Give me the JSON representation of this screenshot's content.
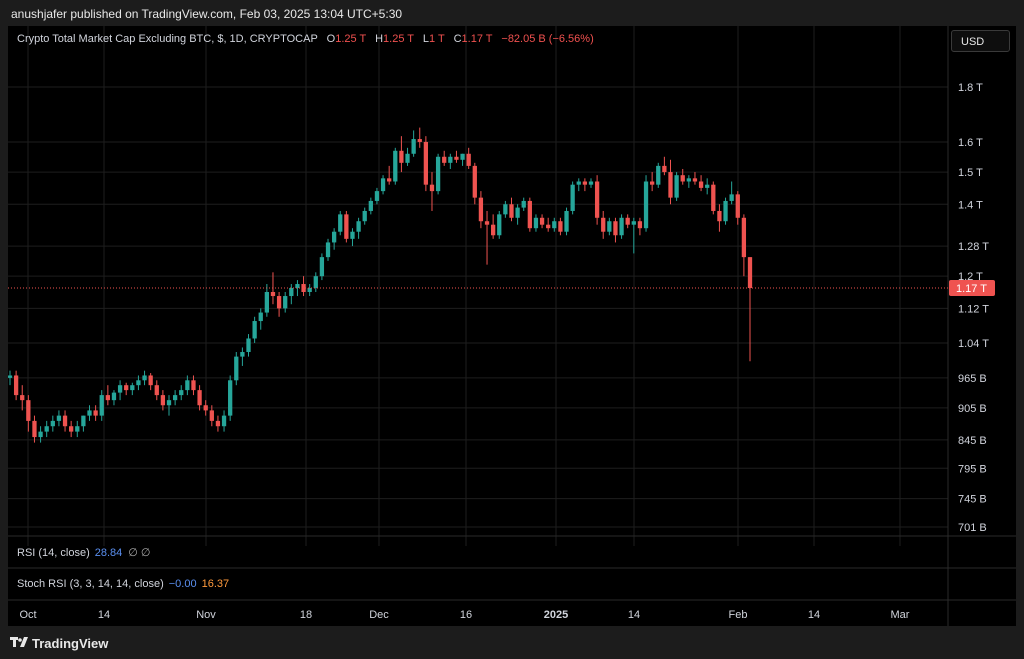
{
  "publish_line": "anushjafer published on TradingView.com, Feb 03, 2025 13:04 UTC+5:30",
  "legend": {
    "symbol": "Crypto Total Market Cap Excluding BTC, $, 1D, CRYPTOCAP",
    "o_label": "O",
    "o": "1.25 T",
    "h_label": "H",
    "h": "1.25 T",
    "l_label": "L",
    "l": "1 T",
    "c_label": "C",
    "c": "1.17 T",
    "change": "−82.05 B (−6.56%)"
  },
  "currency_button": "USD",
  "indicators": {
    "rsi_label": "RSI (14, close)",
    "rsi_value": "28.84",
    "rsi_extra": "∅ ∅",
    "stoch_label": "Stoch RSI (3, 3, 14, 14, close)",
    "stoch_k": "−0.00",
    "stoch_d": "16.37"
  },
  "brand": "TradingView",
  "colors": {
    "up": "#26a69a",
    "down": "#ef5350",
    "background": "#000000",
    "price_line": "#ef5350"
  },
  "chart_data": {
    "type": "candlestick",
    "title": "Crypto Total Market Cap Excluding BTC, $, 1D, CRYPTOCAP",
    "y_scale": "log",
    "y_ticks": [
      "1.8 T",
      "1.6 T",
      "1.5 T",
      "1.4 T",
      "1.28 T",
      "1.2 T",
      "1.12 T",
      "1.04 T",
      "965 B",
      "905 B",
      "845 B",
      "795 B",
      "745 B",
      "701 B"
    ],
    "x_ticks": [
      "Oct",
      "14",
      "Nov",
      "18",
      "Dec",
      "16",
      "2025",
      "14",
      "Feb",
      "14",
      "Mar"
    ],
    "last_price_label": "1.17 T",
    "last_price": 1.17,
    "grid": true,
    "ohlc_units": "trillion USD",
    "candles": [
      [
        0.965,
        0.98,
        0.95,
        0.97
      ],
      [
        0.97,
        0.98,
        0.92,
        0.93
      ],
      [
        0.93,
        0.95,
        0.9,
        0.92
      ],
      [
        0.92,
        0.93,
        0.86,
        0.88
      ],
      [
        0.88,
        0.89,
        0.84,
        0.85
      ],
      [
        0.85,
        0.87,
        0.84,
        0.86
      ],
      [
        0.86,
        0.88,
        0.85,
        0.87
      ],
      [
        0.87,
        0.89,
        0.86,
        0.88
      ],
      [
        0.88,
        0.9,
        0.87,
        0.89
      ],
      [
        0.89,
        0.9,
        0.86,
        0.87
      ],
      [
        0.87,
        0.88,
        0.85,
        0.86
      ],
      [
        0.86,
        0.88,
        0.85,
        0.87
      ],
      [
        0.87,
        0.89,
        0.86,
        0.89
      ],
      [
        0.89,
        0.91,
        0.88,
        0.9
      ],
      [
        0.9,
        0.91,
        0.88,
        0.89
      ],
      [
        0.89,
        0.94,
        0.88,
        0.93
      ],
      [
        0.93,
        0.95,
        0.91,
        0.92
      ],
      [
        0.92,
        0.94,
        0.91,
        0.935
      ],
      [
        0.935,
        0.96,
        0.92,
        0.95
      ],
      [
        0.95,
        0.955,
        0.93,
        0.94
      ],
      [
        0.94,
        0.955,
        0.93,
        0.95
      ],
      [
        0.95,
        0.97,
        0.94,
        0.96
      ],
      [
        0.96,
        0.98,
        0.95,
        0.97
      ],
      [
        0.97,
        0.975,
        0.94,
        0.95
      ],
      [
        0.95,
        0.96,
        0.92,
        0.93
      ],
      [
        0.93,
        0.94,
        0.9,
        0.91
      ],
      [
        0.91,
        0.93,
        0.89,
        0.92
      ],
      [
        0.92,
        0.94,
        0.91,
        0.93
      ],
      [
        0.93,
        0.95,
        0.92,
        0.94
      ],
      [
        0.94,
        0.97,
        0.93,
        0.96
      ],
      [
        0.96,
        0.97,
        0.93,
        0.94
      ],
      [
        0.94,
        0.95,
        0.9,
        0.91
      ],
      [
        0.91,
        0.92,
        0.89,
        0.9
      ],
      [
        0.9,
        0.91,
        0.87,
        0.88
      ],
      [
        0.88,
        0.89,
        0.86,
        0.87
      ],
      [
        0.87,
        0.9,
        0.86,
        0.89
      ],
      [
        0.89,
        0.97,
        0.88,
        0.96
      ],
      [
        0.96,
        1.02,
        0.95,
        1.01
      ],
      [
        1.01,
        1.03,
        0.99,
        1.02
      ],
      [
        1.02,
        1.06,
        1.01,
        1.05
      ],
      [
        1.05,
        1.1,
        1.04,
        1.09
      ],
      [
        1.09,
        1.12,
        1.07,
        1.11
      ],
      [
        1.11,
        1.18,
        1.1,
        1.16
      ],
      [
        1.16,
        1.21,
        1.13,
        1.15
      ],
      [
        1.15,
        1.16,
        1.1,
        1.12
      ],
      [
        1.12,
        1.16,
        1.11,
        1.15
      ],
      [
        1.15,
        1.18,
        1.13,
        1.17
      ],
      [
        1.17,
        1.19,
        1.15,
        1.18
      ],
      [
        1.18,
        1.2,
        1.15,
        1.16
      ],
      [
        1.16,
        1.18,
        1.15,
        1.17
      ],
      [
        1.17,
        1.21,
        1.16,
        1.2
      ],
      [
        1.2,
        1.26,
        1.19,
        1.25
      ],
      [
        1.25,
        1.3,
        1.24,
        1.29
      ],
      [
        1.29,
        1.33,
        1.27,
        1.32
      ],
      [
        1.32,
        1.38,
        1.31,
        1.37
      ],
      [
        1.37,
        1.38,
        1.29,
        1.3
      ],
      [
        1.3,
        1.33,
        1.28,
        1.32
      ],
      [
        1.32,
        1.36,
        1.3,
        1.35
      ],
      [
        1.35,
        1.39,
        1.34,
        1.38
      ],
      [
        1.38,
        1.42,
        1.37,
        1.41
      ],
      [
        1.41,
        1.45,
        1.4,
        1.44
      ],
      [
        1.44,
        1.49,
        1.43,
        1.48
      ],
      [
        1.48,
        1.52,
        1.46,
        1.47
      ],
      [
        1.47,
        1.58,
        1.46,
        1.57
      ],
      [
        1.57,
        1.62,
        1.5,
        1.53
      ],
      [
        1.53,
        1.58,
        1.52,
        1.56
      ],
      [
        1.56,
        1.64,
        1.55,
        1.61
      ],
      [
        1.61,
        1.65,
        1.58,
        1.6
      ],
      [
        1.6,
        1.62,
        1.44,
        1.46
      ],
      [
        1.46,
        1.5,
        1.38,
        1.44
      ],
      [
        1.44,
        1.56,
        1.43,
        1.55
      ],
      [
        1.55,
        1.57,
        1.52,
        1.53
      ],
      [
        1.53,
        1.56,
        1.51,
        1.55
      ],
      [
        1.55,
        1.57,
        1.53,
        1.54
      ],
      [
        1.54,
        1.56,
        1.52,
        1.56
      ],
      [
        1.56,
        1.58,
        1.51,
        1.52
      ],
      [
        1.52,
        1.53,
        1.4,
        1.42
      ],
      [
        1.42,
        1.44,
        1.33,
        1.35
      ],
      [
        1.35,
        1.38,
        1.23,
        1.34
      ],
      [
        1.34,
        1.37,
        1.3,
        1.31
      ],
      [
        1.31,
        1.38,
        1.3,
        1.37
      ],
      [
        1.37,
        1.41,
        1.36,
        1.4
      ],
      [
        1.4,
        1.42,
        1.35,
        1.36
      ],
      [
        1.36,
        1.4,
        1.34,
        1.39
      ],
      [
        1.39,
        1.42,
        1.38,
        1.41
      ],
      [
        1.41,
        1.42,
        1.32,
        1.33
      ],
      [
        1.33,
        1.37,
        1.32,
        1.36
      ],
      [
        1.36,
        1.37,
        1.33,
        1.34
      ],
      [
        1.34,
        1.36,
        1.32,
        1.33
      ],
      [
        1.33,
        1.36,
        1.32,
        1.35
      ],
      [
        1.35,
        1.36,
        1.31,
        1.32
      ],
      [
        1.32,
        1.39,
        1.31,
        1.38
      ],
      [
        1.38,
        1.47,
        1.37,
        1.46
      ],
      [
        1.46,
        1.48,
        1.44,
        1.47
      ],
      [
        1.47,
        1.48,
        1.44,
        1.46
      ],
      [
        1.46,
        1.48,
        1.45,
        1.47
      ],
      [
        1.47,
        1.49,
        1.34,
        1.36
      ],
      [
        1.36,
        1.38,
        1.3,
        1.32
      ],
      [
        1.32,
        1.36,
        1.31,
        1.35
      ],
      [
        1.35,
        1.36,
        1.29,
        1.31
      ],
      [
        1.31,
        1.37,
        1.3,
        1.36
      ],
      [
        1.36,
        1.37,
        1.33,
        1.34
      ],
      [
        1.34,
        1.36,
        1.26,
        1.35
      ],
      [
        1.35,
        1.36,
        1.31,
        1.33
      ],
      [
        1.33,
        1.49,
        1.32,
        1.47
      ],
      [
        1.47,
        1.5,
        1.44,
        1.46
      ],
      [
        1.46,
        1.53,
        1.45,
        1.52
      ],
      [
        1.52,
        1.55,
        1.49,
        1.5
      ],
      [
        1.5,
        1.54,
        1.4,
        1.42
      ],
      [
        1.42,
        1.5,
        1.41,
        1.49
      ],
      [
        1.49,
        1.51,
        1.46,
        1.47
      ],
      [
        1.47,
        1.49,
        1.45,
        1.48
      ],
      [
        1.48,
        1.5,
        1.46,
        1.47
      ],
      [
        1.47,
        1.49,
        1.44,
        1.45
      ],
      [
        1.45,
        1.48,
        1.43,
        1.46
      ],
      [
        1.46,
        1.47,
        1.37,
        1.38
      ],
      [
        1.38,
        1.4,
        1.32,
        1.35
      ],
      [
        1.35,
        1.42,
        1.34,
        1.41
      ],
      [
        1.41,
        1.47,
        1.4,
        1.43
      ],
      [
        1.43,
        1.44,
        1.34,
        1.36
      ],
      [
        1.36,
        1.37,
        1.2,
        1.25
      ],
      [
        1.25,
        1.25,
        1.0,
        1.17
      ]
    ]
  }
}
